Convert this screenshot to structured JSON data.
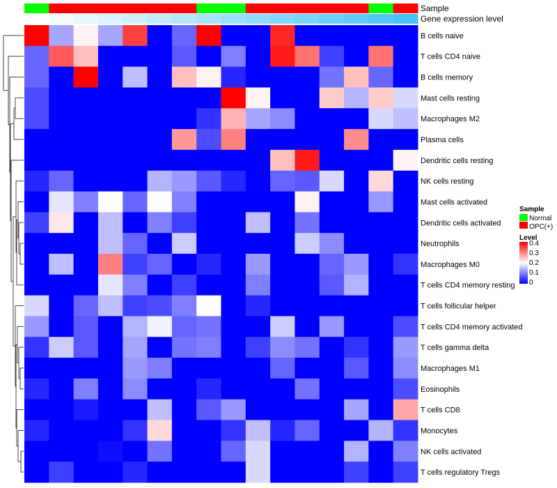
{
  "chart_data": {
    "type": "heatmap",
    "title": "",
    "annotation_labels": {
      "sample": "Sample",
      "gene_expression": "Gene expression level"
    },
    "columns": 16,
    "sample_groups": [
      "Normal",
      "OPC(+)",
      "OPC(+)",
      "OPC(+)",
      "OPC(+)",
      "OPC(+)",
      "OPC(+)",
      "Normal",
      "Normal",
      "OPC(+)",
      "OPC(+)",
      "OPC(+)",
      "OPC(+)",
      "OPC(+)",
      "Normal",
      "OPC(+)"
    ],
    "gene_expression_level": [
      0.0,
      0.05,
      0.1,
      0.15,
      0.2,
      0.25,
      0.3,
      0.35,
      0.4,
      0.45,
      0.5,
      0.55,
      0.6,
      0.65,
      0.7,
      0.75
    ],
    "rows": [
      "B cells naive",
      "T cells CD4 naive",
      "B cells memory",
      "Mast cells resting",
      "Macrophages M2",
      "Plasma cells",
      "Dendritic cells resting",
      "NK cells resting",
      "Mast cells activated",
      "Dendritic cells activated",
      "Neutrophils",
      "Macrophages M0",
      "T cells CD4 memory resting",
      "T cells follicular helper",
      "T cells CD4 memory activated",
      "T cells gamma delta",
      "Macrophages M1",
      "Eosinophils",
      "T cells CD8",
      "Monocytes",
      "NK cells activated",
      "T cells regulatory  Tregs"
    ],
    "values": [
      [
        0.4,
        0.13,
        0.21,
        0.13,
        0.35,
        0,
        0.08,
        0.4,
        0,
        0,
        0.37,
        0,
        0,
        0,
        0,
        0
      ],
      [
        0.08,
        0.33,
        0.25,
        0,
        0,
        0,
        0.07,
        0,
        0.1,
        0,
        0.38,
        0.31,
        0.05,
        0,
        0.31,
        0
      ],
      [
        0.08,
        0,
        0.4,
        0,
        0.15,
        0,
        0.25,
        0.21,
        0.03,
        0,
        0,
        0,
        0.09,
        0.25,
        0.08,
        0
      ],
      [
        0.06,
        0,
        0,
        0,
        0,
        0,
        0,
        0,
        0.4,
        0.21,
        0,
        0,
        0.24,
        0.14,
        0.24,
        0.17
      ],
      [
        0.06,
        0,
        0,
        0,
        0,
        0,
        0,
        0.04,
        0.26,
        0.13,
        0.11,
        0,
        0,
        0,
        0.17,
        0.15
      ],
      [
        0,
        0,
        0,
        0,
        0,
        0,
        0.28,
        0.06,
        0.3,
        0,
        0,
        0,
        0,
        0.29,
        0,
        0
      ],
      [
        0,
        0,
        0,
        0,
        0,
        0,
        0,
        0,
        0,
        0,
        0.25,
        0.38,
        0,
        0,
        0,
        0.21
      ],
      [
        0.03,
        0.08,
        0,
        0,
        0,
        0.14,
        0.12,
        0.07,
        0.03,
        0,
        0.08,
        0.07,
        0.17,
        0,
        0.23,
        0
      ],
      [
        0,
        0.18,
        0.1,
        0.2,
        0.08,
        0.2,
        0.1,
        0,
        0,
        0,
        0,
        0.21,
        0,
        0,
        0.12,
        0
      ],
      [
        0.05,
        0.22,
        0,
        0.15,
        0,
        0.1,
        0.05,
        0,
        0,
        0.15,
        0,
        0.09,
        0,
        0,
        0,
        0
      ],
      [
        0,
        0,
        0,
        0.15,
        0.08,
        0,
        0.16,
        0,
        0,
        0,
        0,
        0.16,
        0.11,
        0,
        0,
        0
      ],
      [
        0,
        0.15,
        0,
        0.3,
        0.05,
        0.08,
        0,
        0.03,
        0,
        0.12,
        0,
        0,
        0.08,
        0.12,
        0,
        0.04
      ],
      [
        0,
        0,
        0,
        0.18,
        0.1,
        0,
        0.05,
        0,
        0,
        0.1,
        0,
        0,
        0.07,
        0.14,
        0,
        0
      ],
      [
        0.17,
        0,
        0.08,
        0.15,
        0.05,
        0.06,
        0.1,
        0.2,
        0,
        0.03,
        0,
        0,
        0,
        0,
        0,
        0
      ],
      [
        0.12,
        0,
        0.07,
        0,
        0.14,
        0.19,
        0.08,
        0.09,
        0,
        0,
        0.16,
        0,
        0.12,
        0,
        0,
        0.06
      ],
      [
        0.04,
        0.16,
        0.07,
        0,
        0.13,
        0,
        0.09,
        0.1,
        0,
        0.05,
        0.11,
        0.09,
        0,
        0.04,
        0,
        0.12
      ],
      [
        0,
        0,
        0,
        0,
        0.12,
        0.1,
        0,
        0,
        0,
        0,
        0.08,
        0,
        0,
        0.07,
        0,
        0.11
      ],
      [
        0.03,
        0,
        0.1,
        0,
        0.11,
        0,
        0,
        0.03,
        0,
        0,
        0,
        0.09,
        0,
        0,
        0,
        0.06
      ],
      [
        0,
        0,
        0.02,
        0,
        0,
        0.15,
        0,
        0.07,
        0.12,
        0,
        0,
        0,
        0,
        0.13,
        0,
        0.27
      ],
      [
        0.03,
        0,
        0,
        0,
        0.04,
        0.23,
        0,
        0,
        0.04,
        0.15,
        0.03,
        0.08,
        0,
        0,
        0.14,
        0.04
      ],
      [
        0,
        0,
        0,
        0.01,
        0,
        0.09,
        0,
        0,
        0.08,
        0.17,
        0,
        0,
        0,
        0.14,
        0,
        0.1
      ],
      [
        0,
        0.05,
        0,
        0,
        0.03,
        0,
        0,
        0,
        0,
        0.17,
        0,
        0,
        0,
        0.05,
        0,
        0.05
      ]
    ],
    "color_scale": {
      "min": 0,
      "mid": 0.2,
      "max": 0.4,
      "low": "#0000ff",
      "midc": "#ffffff",
      "high": "#ff0000"
    },
    "legend": {
      "sample_title": "Sample",
      "sample_entries": [
        {
          "label": "Normal",
          "color": "#00ff00"
        },
        {
          "label": "OPC(+)",
          "color": "#ff0000"
        }
      ],
      "level_title": "Level",
      "level_ticks": [
        "0.4",
        "0.3",
        "0.2",
        "0.1",
        "0"
      ],
      "placement": "right"
    }
  }
}
